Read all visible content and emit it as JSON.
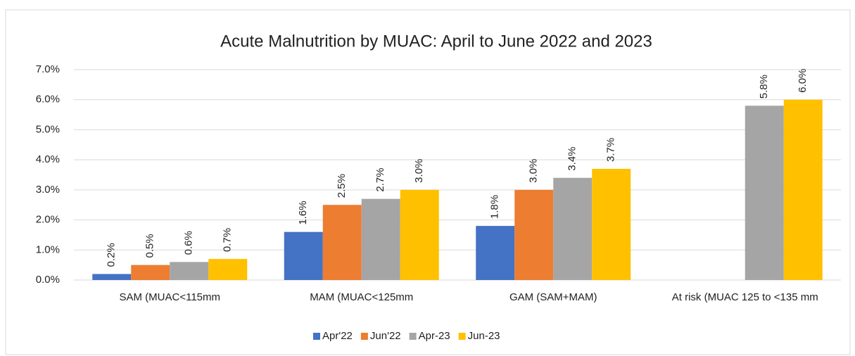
{
  "chart_data": {
    "type": "bar",
    "title": "Acute Malnutrition by MUAC:  April to June 2022 and 2023",
    "categories": [
      "SAM (MUAC<115mm",
      "MAM (MUAC<125mm",
      "GAM (SAM+MAM)",
      "At risk  (MUAC 125 to <135 mm"
    ],
    "series": [
      {
        "name": "Apr'22",
        "color": "#4472c4",
        "values": [
          0.2,
          1.6,
          1.8,
          null
        ],
        "value_labels": [
          "0.2%",
          "1.6%",
          "1.8%",
          null
        ]
      },
      {
        "name": "Jun'22",
        "color": "#ed7d31",
        "values": [
          0.5,
          2.5,
          3.0,
          null
        ],
        "value_labels": [
          "0.5%",
          "2.5%",
          "3.0%",
          null
        ]
      },
      {
        "name": "Apr-23",
        "color": "#a5a5a5",
        "values": [
          0.6,
          2.7,
          3.4,
          5.8
        ],
        "value_labels": [
          "0.6%",
          "2.7%",
          "3.4%",
          "5.8%"
        ]
      },
      {
        "name": "Jun-23",
        "color": "#ffc000",
        "values": [
          0.7,
          3.0,
          3.7,
          6.0
        ],
        "value_labels": [
          "0.7%",
          "3.0%",
          "3.7%",
          "6.0%"
        ]
      }
    ],
    "ylim": [
      0,
      7
    ],
    "yticks": [
      {
        "value": 0,
        "label": "0.0%"
      },
      {
        "value": 1,
        "label": "1.0%"
      },
      {
        "value": 2,
        "label": "2.0%"
      },
      {
        "value": 3,
        "label": "3.0%"
      },
      {
        "value": 4,
        "label": "4.0%"
      },
      {
        "value": 5,
        "label": "5.0%"
      },
      {
        "value": 6,
        "label": "6.0%"
      },
      {
        "value": 7,
        "label": "7.0%"
      }
    ],
    "grid": true,
    "legend": "bottom"
  }
}
